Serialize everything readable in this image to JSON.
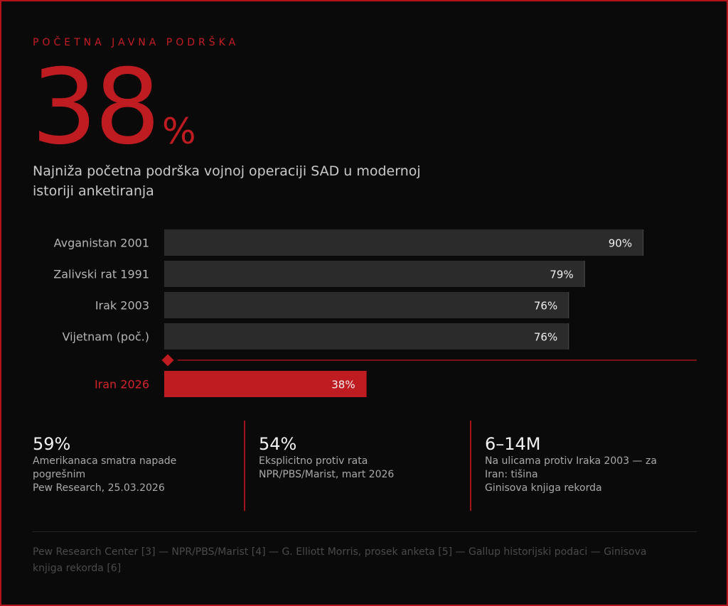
{
  "kicker": "POČETNA JAVNA PODRŠKA",
  "headline": {
    "value": "38",
    "unit": "%"
  },
  "description_lines": [
    "Najniža početna podrška vojnoj operaciji SAD u modernoj",
    "istoriji anketiranja"
  ],
  "colors": {
    "accent": "#bf1c22",
    "bar": "#2b2b2b",
    "background": "#0b0a0b"
  },
  "chart_data": {
    "type": "bar",
    "orientation": "horizontal",
    "categories": [
      "Avganistan 2001",
      "Zalivski rat 1991",
      "Irak 2003",
      "Vijetnam (poč.)",
      "Iran 2026"
    ],
    "values": [
      90,
      79,
      76,
      76,
      38
    ],
    "value_labels": [
      "90%",
      "79%",
      "76%",
      "76%",
      "38%"
    ],
    "highlight": "Iran 2026",
    "xlim": [
      0,
      100
    ],
    "grid": false,
    "legend": "none"
  },
  "stats": [
    {
      "value": "59%",
      "lines": [
        "Amerikanaca smatra napade",
        "pogrešnim",
        "Pew Research, 25.03.2026"
      ]
    },
    {
      "value": "54%",
      "lines": [
        "Eksplicitno protiv rata",
        "NPR/PBS/Marist, mart 2026"
      ]
    },
    {
      "value": "6–14M",
      "lines": [
        "Na ulicama protiv Iraka 2003 — za",
        "Iran: tišina",
        "Ginisova knjiga rekorda"
      ]
    }
  ],
  "sources_lines": [
    "Pew Research Center [3] — NPR/PBS/Marist [4] — G. Elliott Morris, prosek anketa [5] — Gallup historijski podaci — Ginisova",
    "knjiga rekorda [6]"
  ]
}
